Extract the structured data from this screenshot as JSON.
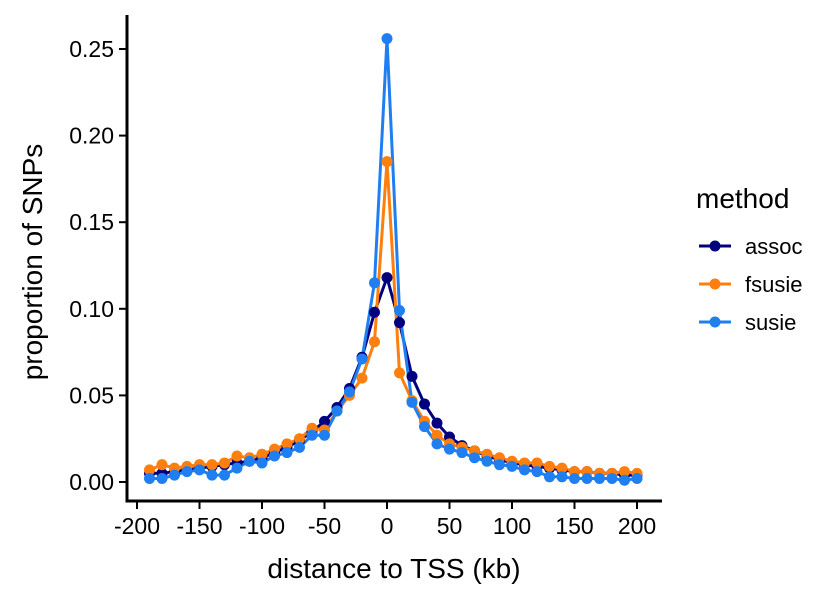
{
  "chart_data": {
    "type": "line",
    "xlabel": "distance to TSS (kb)",
    "ylabel": "proportion of SNPs",
    "xlim": [
      -200,
      200
    ],
    "ylim": [
      0,
      0.25
    ],
    "x_ticks": [
      -200,
      -150,
      -100,
      -50,
      0,
      50,
      100,
      150,
      200
    ],
    "x_tick_labels": [
      "-200",
      "-150",
      "-100",
      "-50",
      "0",
      "50",
      "100",
      "150",
      "200"
    ],
    "y_ticks": [
      0,
      0.05,
      0.1,
      0.15,
      0.2,
      0.25
    ],
    "y_tick_labels": [
      "0.00",
      "0.05",
      "0.10",
      "0.15",
      "0.20",
      "0.25"
    ],
    "legend": {
      "title": "method",
      "placement": "right"
    },
    "x": [
      -190,
      -180,
      -170,
      -160,
      -150,
      -140,
      -130,
      -120,
      -110,
      -100,
      -90,
      -80,
      -70,
      -60,
      -50,
      -40,
      -30,
      -20,
      -10,
      0,
      10,
      20,
      30,
      40,
      50,
      60,
      70,
      80,
      90,
      100,
      110,
      120,
      130,
      140,
      150,
      160,
      170,
      180,
      190,
      200
    ],
    "series": [
      {
        "name": "assoc",
        "color": "#00007f",
        "values": [
          0.005,
          0.005,
          0.006,
          0.007,
          0.008,
          0.009,
          0.01,
          0.011,
          0.012,
          0.014,
          0.017,
          0.02,
          0.024,
          0.029,
          0.035,
          0.043,
          0.054,
          0.072,
          0.098,
          0.118,
          0.092,
          0.061,
          0.045,
          0.034,
          0.026,
          0.021,
          0.018,
          0.015,
          0.013,
          0.011,
          0.01,
          0.009,
          0.008,
          0.007,
          0.006,
          0.006,
          0.005,
          0.005,
          0.004,
          0.004
        ]
      },
      {
        "name": "fsusie",
        "color": "#ff7f0e",
        "values": [
          0.007,
          0.01,
          0.008,
          0.009,
          0.01,
          0.01,
          0.011,
          0.015,
          0.014,
          0.016,
          0.019,
          0.022,
          0.025,
          0.031,
          0.03,
          0.041,
          0.05,
          0.06,
          0.081,
          0.185,
          0.063,
          0.047,
          0.035,
          0.027,
          0.022,
          0.02,
          0.018,
          0.016,
          0.014,
          0.012,
          0.011,
          0.011,
          0.009,
          0.008,
          0.006,
          0.006,
          0.005,
          0.005,
          0.006,
          0.005
        ]
      },
      {
        "name": "susie",
        "color": "#1f7ff0",
        "values": [
          0.002,
          0.002,
          0.004,
          0.006,
          0.007,
          0.004,
          0.004,
          0.008,
          0.012,
          0.011,
          0.015,
          0.017,
          0.02,
          0.027,
          0.027,
          0.041,
          0.052,
          0.071,
          0.115,
          0.256,
          0.099,
          0.046,
          0.032,
          0.022,
          0.019,
          0.017,
          0.014,
          0.012,
          0.01,
          0.009,
          0.007,
          0.006,
          0.003,
          0.003,
          0.002,
          0.002,
          0.002,
          0.002,
          0.001,
          0.002
        ]
      }
    ]
  }
}
